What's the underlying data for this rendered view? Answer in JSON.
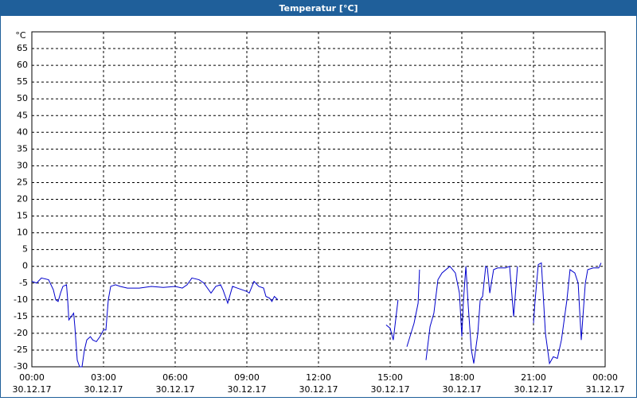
{
  "chart_data": {
    "type": "line",
    "title": "Temperatur [°C]",
    "y_unit": "°C",
    "x": [
      0,
      0.2,
      0.4,
      0.7,
      0.9,
      1.0,
      1.1,
      1.2,
      1.3,
      1.45,
      1.5,
      1.55,
      1.65,
      1.75,
      1.8,
      1.9,
      2.0,
      2.1,
      2.2,
      2.3,
      2.45,
      2.55,
      2.7,
      2.85,
      3.0,
      3.1,
      3.2,
      3.3,
      3.5,
      3.7,
      4.0,
      4.5,
      5.0,
      5.5,
      6.0,
      6.3,
      6.5,
      6.7,
      7.0,
      7.2,
      7.5,
      7.7,
      7.9,
      8.0,
      8.2,
      8.4,
      8.6,
      9.0,
      9.1,
      9.3,
      9.5,
      9.7,
      9.8,
      9.95,
      10.05,
      10.15,
      10.3,
      12.5,
      14.83,
      15.0,
      15.13,
      15.33,
      15.5,
      15.7,
      16.0,
      16.17,
      16.23,
      16.35,
      16.5,
      16.67,
      16.83,
      17.0,
      17.17,
      17.5,
      17.73,
      17.9,
      18.0,
      18.07,
      18.17,
      18.27,
      18.4,
      18.5,
      18.67,
      18.77,
      18.87,
      19.0,
      19.07,
      19.17,
      19.33,
      19.5,
      19.83,
      20.0,
      20.17,
      20.33,
      20.6,
      21.0,
      21.07,
      21.2,
      21.33,
      21.5,
      21.67,
      21.83,
      22.0,
      22.17,
      22.4,
      22.53,
      22.73,
      22.87,
      23.0,
      23.1,
      23.17,
      23.27,
      23.5,
      23.73,
      23.83
    ],
    "series": [
      {
        "name": "Temperatur",
        "color": "#0000cc",
        "values": [
          -4.5,
          -5,
          -3.5,
          -4,
          -7,
          -10,
          -10.5,
          -8,
          -6,
          -5.5,
          -10,
          -16,
          -15,
          -14,
          -18,
          -28,
          -30,
          -30,
          -25,
          -22,
          -21,
          -22,
          -22.5,
          -21,
          -19,
          -19,
          -10,
          -6,
          -5.5,
          -6,
          -6.5,
          -6.5,
          -6,
          -6.3,
          -6,
          -6.5,
          -5.5,
          -3.5,
          -4,
          -5,
          -8,
          -6,
          -5.5,
          -7,
          -11,
          -6,
          -6.5,
          -7.5,
          -8,
          -4.5,
          -6,
          -6.5,
          -9,
          -9.5,
          -10.5,
          -9,
          -10,
          null,
          -17.5,
          -18.5,
          -22,
          -10,
          null,
          -24,
          -17,
          -11,
          -1,
          null,
          -28,
          -18,
          -14,
          -4,
          -2,
          0,
          -2,
          -8,
          -21,
          -10,
          0,
          -12,
          -25,
          -29,
          -20,
          -10,
          -9,
          0,
          -0.5,
          -8,
          -1,
          -0.5,
          -0.5,
          0,
          -15,
          0,
          null,
          -17,
          -10,
          0.5,
          1,
          -20,
          -29,
          -27,
          -27.5,
          -22,
          -10,
          -1,
          -2,
          -5,
          -22,
          -12,
          -5,
          -1,
          -0.5,
          -0.5,
          1
        ]
      }
    ],
    "xlim": [
      0,
      24
    ],
    "ylim": [
      -30,
      70
    ],
    "xticks": [
      {
        "value": 0,
        "label": "00:00"
      },
      {
        "value": 3,
        "label": "03:00"
      },
      {
        "value": 6,
        "label": "06:00"
      },
      {
        "value": 9,
        "label": "09:00"
      },
      {
        "value": 12,
        "label": "12:00"
      },
      {
        "value": 15,
        "label": "15:00"
      },
      {
        "value": 18,
        "label": "18:00"
      },
      {
        "value": 21,
        "label": "21:00"
      },
      {
        "value": 24,
        "label": "00:00"
      }
    ],
    "xtick_dates": [
      "30.12.17",
      "30.12.17",
      "30.12.17",
      "30.12.17",
      "30.12.17",
      "30.12.17",
      "30.12.17",
      "30.12.17",
      "31.12.17"
    ],
    "yticks": [
      -30,
      -25,
      -20,
      -15,
      -10,
      -5,
      0,
      5,
      10,
      15,
      20,
      25,
      30,
      35,
      40,
      45,
      50,
      55,
      60,
      65
    ],
    "grid": true
  }
}
